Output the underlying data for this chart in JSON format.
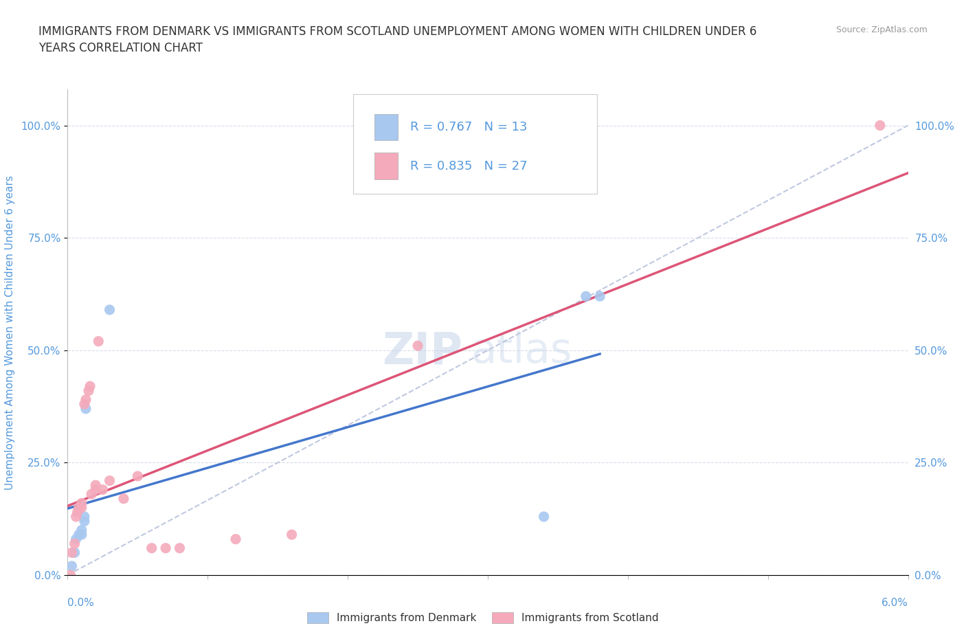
{
  "title": "IMMIGRANTS FROM DENMARK VS IMMIGRANTS FROM SCOTLAND UNEMPLOYMENT AMONG WOMEN WITH CHILDREN UNDER 6\nYEARS CORRELATION CHART",
  "source": "Source: ZipAtlas.com",
  "ylabel": "Unemployment Among Women with Children Under 6 years",
  "yticks": [
    0.0,
    0.25,
    0.5,
    0.75,
    1.0
  ],
  "ytick_labels": [
    "0.0%",
    "25.0%",
    "50.0%",
    "75.0%",
    "100.0%"
  ],
  "xlim": [
    0.0,
    0.06
  ],
  "ylim": [
    0.0,
    1.08
  ],
  "denmark_color": "#a8c8f0",
  "scotland_color": "#f4aabb",
  "denmark_line_color": "#4477cc",
  "scotland_line_color": "#dd5577",
  "diagonal_color": "#c0c8e0",
  "r_denmark": 0.767,
  "n_denmark": 13,
  "r_scotland": 0.835,
  "n_scotland": 27,
  "legend_label_denmark": "Immigrants from Denmark",
  "legend_label_scotland": "Immigrants from Scotland",
  "watermark_zip": "ZIP",
  "watermark_atlas": "atlas",
  "denmark_points_x": [
    0.0003,
    0.0005,
    0.0006,
    0.0008,
    0.001,
    0.001,
    0.0012,
    0.0012,
    0.0013,
    0.003,
    0.034,
    0.037,
    0.038
  ],
  "denmark_points_y": [
    0.02,
    0.05,
    0.08,
    0.09,
    0.09,
    0.1,
    0.12,
    0.13,
    0.37,
    0.59,
    0.13,
    0.62,
    0.62
  ],
  "scotland_points_x": [
    0.0002,
    0.0003,
    0.0005,
    0.0006,
    0.0007,
    0.0008,
    0.001,
    0.001,
    0.0012,
    0.0013,
    0.0015,
    0.0016,
    0.0017,
    0.002,
    0.002,
    0.0022,
    0.0025,
    0.003,
    0.004,
    0.005,
    0.006,
    0.007,
    0.008,
    0.012,
    0.016,
    0.025,
    0.058
  ],
  "scotland_points_y": [
    0.0,
    0.05,
    0.07,
    0.13,
    0.14,
    0.15,
    0.15,
    0.16,
    0.38,
    0.39,
    0.41,
    0.42,
    0.18,
    0.19,
    0.2,
    0.52,
    0.19,
    0.21,
    0.17,
    0.22,
    0.06,
    0.06,
    0.06,
    0.08,
    0.09,
    0.51,
    1.0
  ],
  "background_color": "#ffffff",
  "grid_color": "#d8dce8",
  "axis_color": "#bbbbbb",
  "tick_color": "#5599dd",
  "title_color": "#333333",
  "source_color": "#999999",
  "xtick_positions": [
    0.0,
    0.01,
    0.02,
    0.03,
    0.04,
    0.05,
    0.06
  ]
}
